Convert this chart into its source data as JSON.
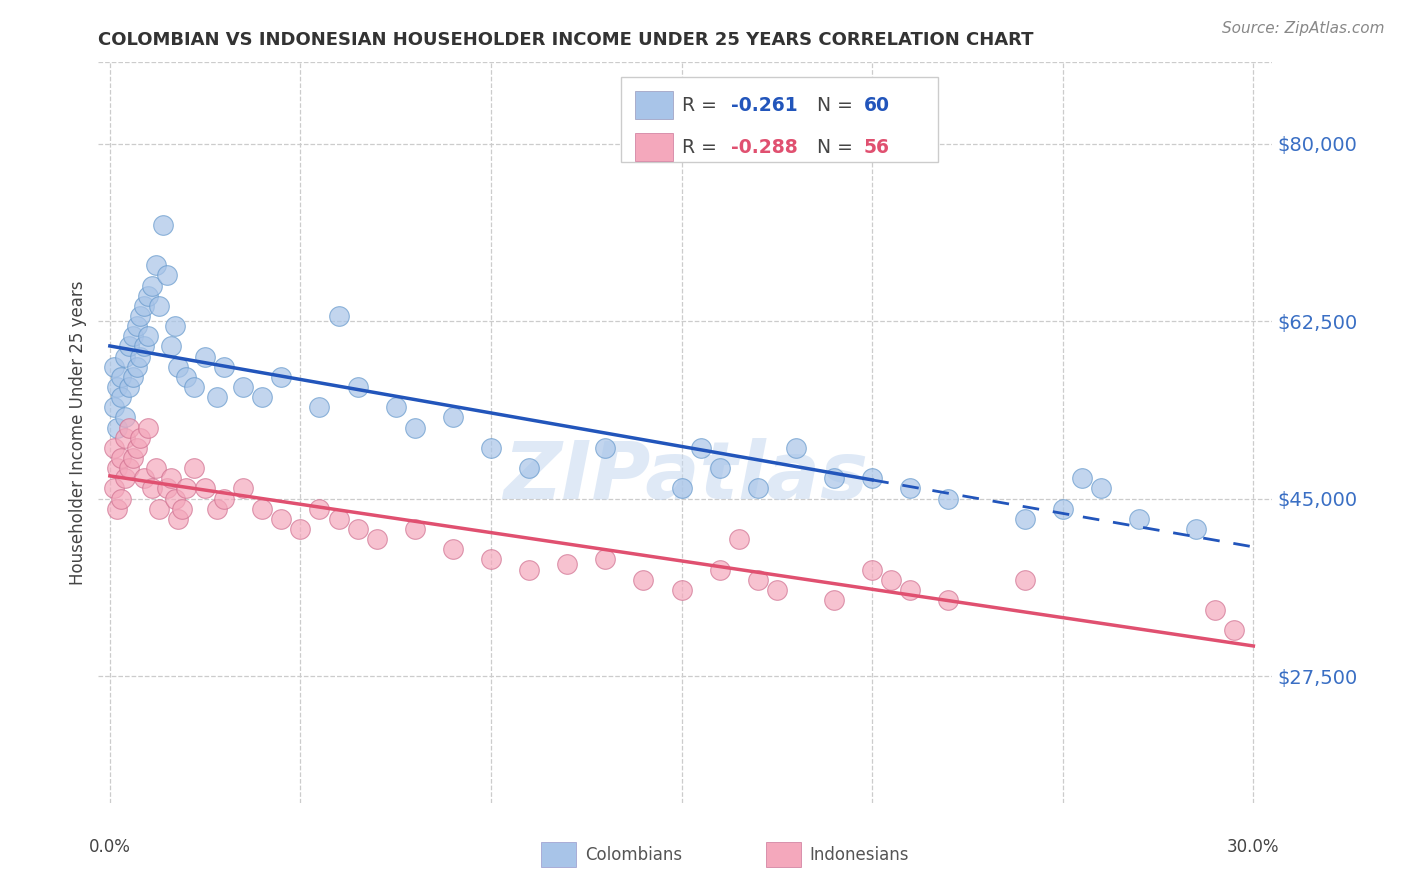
{
  "title": "COLOMBIAN VS INDONESIAN HOUSEHOLDER INCOME UNDER 25 YEARS CORRELATION CHART",
  "source": "Source: ZipAtlas.com",
  "ylabel": "Householder Income Under 25 years",
  "ytick_positions": [
    27500,
    45000,
    62500,
    80000
  ],
  "ytick_labels": [
    "$27,500",
    "$45,000",
    "$62,500",
    "$80,000"
  ],
  "xlim": [
    -0.003,
    0.305
  ],
  "ylim": [
    15000,
    88000
  ],
  "legend_r1": "-0.261",
  "legend_n1": "60",
  "legend_r2": "-0.288",
  "legend_n2": "56",
  "color_colombian": "#a8c4e8",
  "color_indonesian": "#f4a8bc",
  "color_line_colombian": "#2255bb",
  "color_line_indonesian": "#e05070",
  "color_yticks": "#3a6fc4",
  "watermark": "ZIPatlas",
  "background_color": "#ffffff",
  "colombian_x": [
    0.001,
    0.001,
    0.002,
    0.002,
    0.003,
    0.003,
    0.004,
    0.004,
    0.005,
    0.005,
    0.006,
    0.006,
    0.007,
    0.007,
    0.008,
    0.008,
    0.009,
    0.009,
    0.01,
    0.01,
    0.011,
    0.012,
    0.013,
    0.014,
    0.015,
    0.016,
    0.017,
    0.018,
    0.02,
    0.022,
    0.025,
    0.028,
    0.03,
    0.035,
    0.04,
    0.045,
    0.055,
    0.06,
    0.065,
    0.075,
    0.08,
    0.09,
    0.1,
    0.11,
    0.13,
    0.15,
    0.155,
    0.16,
    0.17,
    0.18,
    0.19,
    0.2,
    0.21,
    0.22,
    0.24,
    0.25,
    0.255,
    0.26,
    0.27,
    0.285
  ],
  "colombian_y": [
    58000,
    54000,
    56000,
    52000,
    57000,
    55000,
    59000,
    53000,
    60000,
    56000,
    61000,
    57000,
    62000,
    58000,
    63000,
    59000,
    64000,
    60000,
    65000,
    61000,
    66000,
    68000,
    64000,
    72000,
    67000,
    60000,
    62000,
    58000,
    57000,
    56000,
    59000,
    55000,
    58000,
    56000,
    55000,
    57000,
    54000,
    63000,
    56000,
    54000,
    52000,
    53000,
    50000,
    48000,
    50000,
    46000,
    50000,
    48000,
    46000,
    50000,
    47000,
    47000,
    46000,
    45000,
    43000,
    44000,
    47000,
    46000,
    43000,
    42000
  ],
  "indonesian_x": [
    0.001,
    0.001,
    0.002,
    0.002,
    0.003,
    0.003,
    0.004,
    0.004,
    0.005,
    0.005,
    0.006,
    0.007,
    0.008,
    0.009,
    0.01,
    0.011,
    0.012,
    0.013,
    0.015,
    0.016,
    0.017,
    0.018,
    0.019,
    0.02,
    0.022,
    0.025,
    0.028,
    0.03,
    0.035,
    0.04,
    0.045,
    0.05,
    0.055,
    0.06,
    0.065,
    0.07,
    0.08,
    0.09,
    0.1,
    0.11,
    0.12,
    0.13,
    0.14,
    0.15,
    0.16,
    0.165,
    0.17,
    0.175,
    0.19,
    0.2,
    0.205,
    0.21,
    0.22,
    0.24,
    0.29,
    0.295
  ],
  "indonesian_y": [
    50000,
    46000,
    48000,
    44000,
    49000,
    45000,
    51000,
    47000,
    52000,
    48000,
    49000,
    50000,
    51000,
    47000,
    52000,
    46000,
    48000,
    44000,
    46000,
    47000,
    45000,
    43000,
    44000,
    46000,
    48000,
    46000,
    44000,
    45000,
    46000,
    44000,
    43000,
    42000,
    44000,
    43000,
    42000,
    41000,
    42000,
    40000,
    39000,
    38000,
    38500,
    39000,
    37000,
    36000,
    38000,
    41000,
    37000,
    36000,
    35000,
    38000,
    37000,
    36000,
    35000,
    37000,
    34000,
    32000
  ]
}
